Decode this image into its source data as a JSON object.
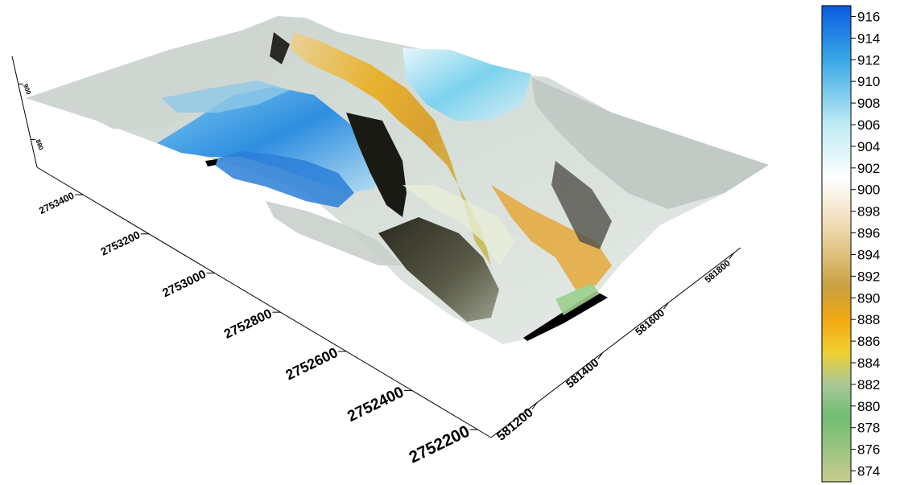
{
  "chart_data": {
    "type": "surface",
    "title": "",
    "xlabel": "",
    "ylabel": "",
    "zlabel": "",
    "x_axis": {
      "ticks": [
        581200,
        581400,
        581600,
        581800
      ]
    },
    "y_axis": {
      "ticks": [
        2752200,
        2752400,
        2752600,
        2752800,
        2753000,
        2753200,
        2753400
      ]
    },
    "z_axis": {
      "ticks": [
        880,
        900
      ]
    },
    "colorbar": {
      "range": [
        873,
        917
      ],
      "ticks": [
        916,
        914,
        912,
        910,
        908,
        906,
        904,
        902,
        900,
        898,
        896,
        894,
        892,
        890,
        888,
        886,
        884,
        882,
        880,
        878,
        876,
        874
      ],
      "color_stops": [
        {
          "value": 917,
          "color": "#0a5ae0"
        },
        {
          "value": 912,
          "color": "#38a8e6"
        },
        {
          "value": 906,
          "color": "#bfeaf4"
        },
        {
          "value": 901,
          "color": "#ffffff"
        },
        {
          "value": 896,
          "color": "#ecd5a6"
        },
        {
          "value": 891,
          "color": "#c8a040"
        },
        {
          "value": 888,
          "color": "#f2a812"
        },
        {
          "value": 885,
          "color": "#f0d030"
        },
        {
          "value": 882,
          "color": "#a8c898"
        },
        {
          "value": 879,
          "color": "#70bc72"
        },
        {
          "value": 873,
          "color": "#c8cc90"
        }
      ]
    }
  }
}
